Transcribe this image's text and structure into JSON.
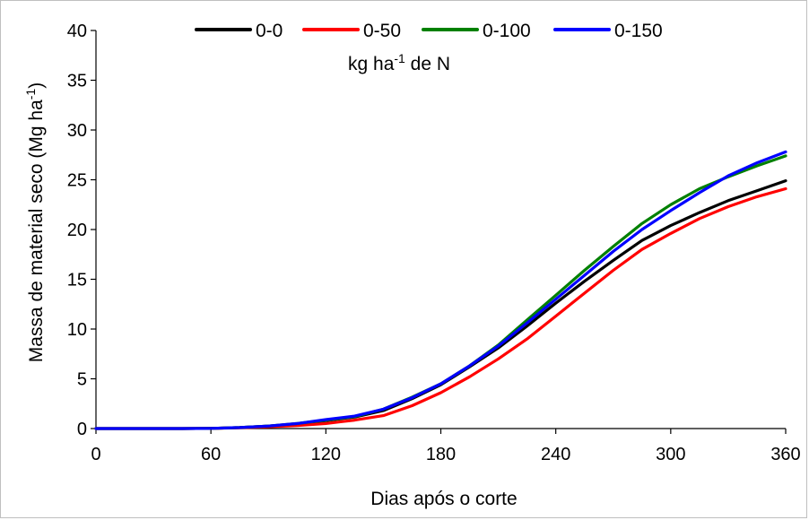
{
  "chart_data": {
    "type": "line",
    "xlabel": "Dias após o corte",
    "ylabel": {
      "main": "Massa de material seco (Mg ha",
      "sup": "-1",
      "close": ")"
    },
    "legend_note": {
      "pre": "kg ha",
      "sup": "-1",
      "post": " de N"
    },
    "xlim": [
      0,
      360
    ],
    "ylim": [
      0,
      40
    ],
    "xticks": [
      0,
      60,
      120,
      180,
      240,
      300,
      360
    ],
    "yticks": [
      0,
      5,
      10,
      15,
      20,
      25,
      30,
      35,
      40
    ],
    "grid": false,
    "legend_position": "top-center",
    "x": [
      0,
      15,
      30,
      45,
      60,
      75,
      90,
      105,
      120,
      135,
      150,
      165,
      180,
      195,
      210,
      225,
      240,
      255,
      270,
      285,
      300,
      315,
      330,
      345,
      360
    ],
    "series": [
      {
        "name": "0-0",
        "color": "#000000",
        "values": [
          0,
          0,
          0,
          0,
          0.02,
          0.1,
          0.25,
          0.45,
          0.8,
          1.15,
          1.8,
          3.0,
          4.4,
          6.2,
          8.1,
          10.3,
          12.6,
          14.8,
          16.9,
          18.9,
          20.4,
          21.7,
          22.9,
          23.9,
          24.9
        ]
      },
      {
        "name": "0-50",
        "color": "#ff0000",
        "values": [
          0,
          0,
          0,
          0,
          0.02,
          0.08,
          0.18,
          0.3,
          0.5,
          0.85,
          1.3,
          2.3,
          3.6,
          5.2,
          7.0,
          9.0,
          11.3,
          13.6,
          15.9,
          18.0,
          19.6,
          21.1,
          22.3,
          23.3,
          24.1
        ]
      },
      {
        "name": "0-100",
        "color": "#008000",
        "values": [
          0,
          0,
          0,
          0,
          0.02,
          0.1,
          0.25,
          0.5,
          0.85,
          1.2,
          1.95,
          3.15,
          4.5,
          6.3,
          8.4,
          10.9,
          13.4,
          15.9,
          18.3,
          20.6,
          22.5,
          24.1,
          25.3,
          26.4,
          27.4
        ]
      },
      {
        "name": "0-150",
        "color": "#0000ff",
        "values": [
          0,
          0,
          0,
          0,
          0.02,
          0.1,
          0.25,
          0.5,
          0.9,
          1.25,
          1.95,
          3.1,
          4.5,
          6.3,
          8.3,
          10.6,
          13.0,
          15.4,
          17.8,
          20.0,
          21.9,
          23.7,
          25.4,
          26.7,
          27.8
        ]
      }
    ]
  }
}
